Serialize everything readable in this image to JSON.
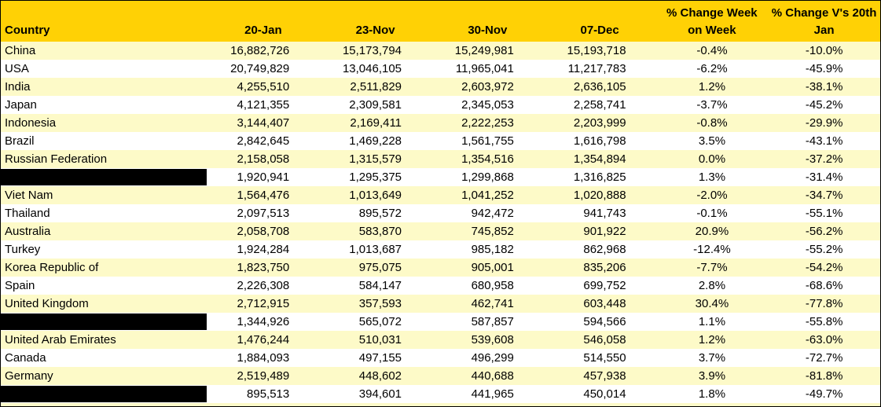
{
  "chart_data": {
    "type": "table",
    "columns": [
      "Country",
      "20-Jan",
      "23-Nov",
      "30-Nov",
      "07-Dec",
      "% Change Week on Week",
      "% Change V's 20th Jan"
    ],
    "rows": [
      {
        "country": "China",
        "redacted": false,
        "values": [
          "16,882,726",
          "15,173,794",
          "15,249,981",
          "15,193,718",
          "-0.4%",
          "-10.0%"
        ]
      },
      {
        "country": "USA",
        "redacted": false,
        "values": [
          "20,749,829",
          "13,046,105",
          "11,965,041",
          "11,217,783",
          "-6.2%",
          "-45.9%"
        ]
      },
      {
        "country": "India",
        "redacted": false,
        "values": [
          "4,255,510",
          "2,511,829",
          "2,603,972",
          "2,636,105",
          "1.2%",
          "-38.1%"
        ]
      },
      {
        "country": "Japan",
        "redacted": false,
        "values": [
          "4,121,355",
          "2,309,581",
          "2,345,053",
          "2,258,741",
          "-3.7%",
          "-45.2%"
        ]
      },
      {
        "country": "Indonesia",
        "redacted": false,
        "values": [
          "3,144,407",
          "2,169,411",
          "2,222,253",
          "2,203,999",
          "-0.8%",
          "-29.9%"
        ]
      },
      {
        "country": "Brazil",
        "redacted": false,
        "values": [
          "2,842,645",
          "1,469,228",
          "1,561,755",
          "1,616,798",
          "3.5%",
          "-43.1%"
        ]
      },
      {
        "country": "Russian Federation",
        "redacted": false,
        "values": [
          "2,158,058",
          "1,315,579",
          "1,354,516",
          "1,354,894",
          "0.0%",
          "-37.2%"
        ]
      },
      {
        "country": "",
        "redacted": true,
        "values": [
          "1,920,941",
          "1,295,375",
          "1,299,868",
          "1,316,825",
          "1.3%",
          "-31.4%"
        ]
      },
      {
        "country": "Viet Nam",
        "redacted": false,
        "values": [
          "1,564,476",
          "1,013,649",
          "1,041,252",
          "1,020,888",
          "-2.0%",
          "-34.7%"
        ]
      },
      {
        "country": "Thailand",
        "redacted": false,
        "values": [
          "2,097,513",
          "895,572",
          "942,472",
          "941,743",
          "-0.1%",
          "-55.1%"
        ]
      },
      {
        "country": "Australia",
        "redacted": false,
        "values": [
          "2,058,708",
          "583,870",
          "745,852",
          "901,922",
          "20.9%",
          "-56.2%"
        ]
      },
      {
        "country": "Turkey",
        "redacted": false,
        "values": [
          "1,924,284",
          "1,013,687",
          "985,182",
          "862,968",
          "-12.4%",
          "-55.2%"
        ]
      },
      {
        "country": "Korea Republic of",
        "redacted": false,
        "values": [
          "1,823,750",
          "975,075",
          "905,001",
          "835,206",
          "-7.7%",
          "-54.2%"
        ]
      },
      {
        "country": "Spain",
        "redacted": false,
        "values": [
          "2,226,308",
          "584,147",
          "680,958",
          "699,752",
          "2.8%",
          "-68.6%"
        ]
      },
      {
        "country": "United Kingdom",
        "redacted": false,
        "values": [
          "2,712,915",
          "357,593",
          "462,741",
          "603,448",
          "30.4%",
          "-77.8%"
        ]
      },
      {
        "country": "",
        "redacted": true,
        "values": [
          "1,344,926",
          "565,072",
          "587,857",
          "594,566",
          "1.1%",
          "-55.8%"
        ]
      },
      {
        "country": "United Arab Emirates",
        "redacted": false,
        "values": [
          "1,476,244",
          "510,031",
          "539,608",
          "546,058",
          "1.2%",
          "-63.0%"
        ]
      },
      {
        "country": "Canada",
        "redacted": false,
        "values": [
          "1,884,093",
          "497,155",
          "496,299",
          "514,550",
          "3.7%",
          "-72.7%"
        ]
      },
      {
        "country": "Germany",
        "redacted": false,
        "values": [
          "2,519,489",
          "448,602",
          "440,688",
          "457,938",
          "3.9%",
          "-81.8%"
        ]
      },
      {
        "country": "",
        "redacted": true,
        "values": [
          "895,513",
          "394,601",
          "441,965",
          "450,014",
          "1.8%",
          "-49.7%"
        ]
      }
    ]
  },
  "colors": {
    "header_bg": "#FFD105",
    "row_even_bg": "#FDFAC8",
    "row_odd_bg": "#FFFFFF",
    "border": "#000000",
    "text": "#000000",
    "redaction_bar": "#000000"
  }
}
